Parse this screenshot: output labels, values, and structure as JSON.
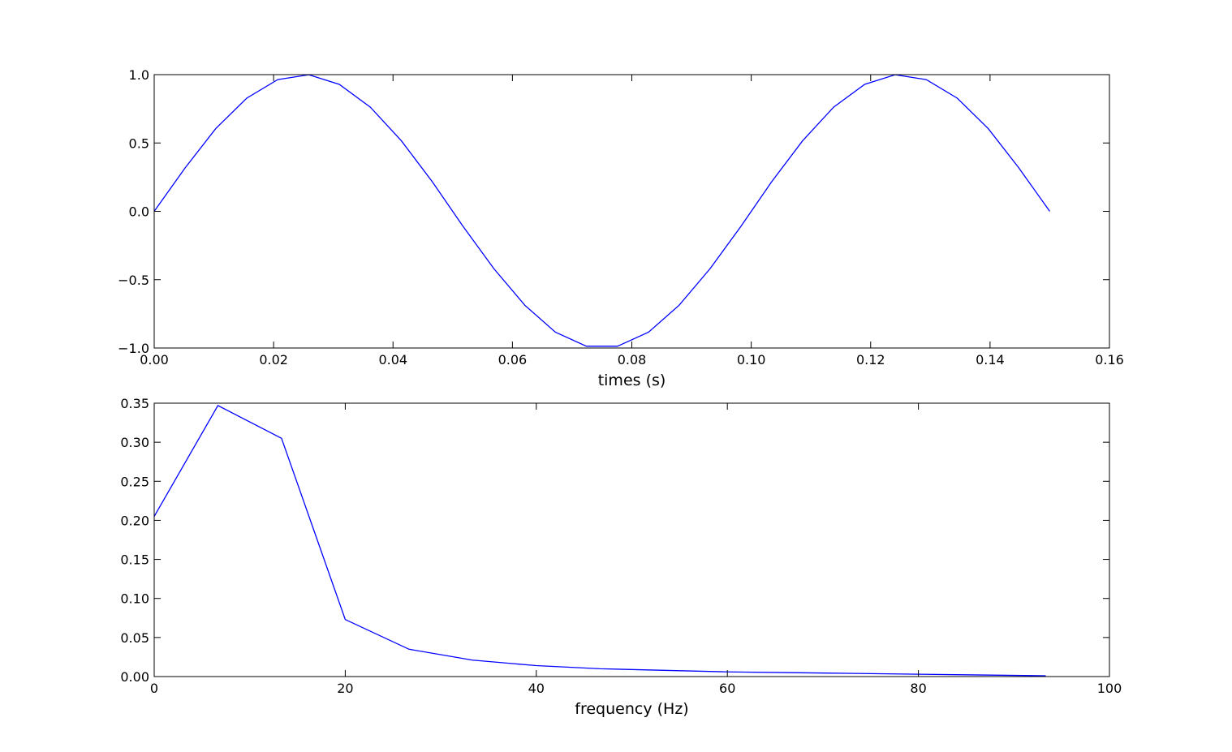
{
  "chart_data": [
    {
      "type": "line",
      "x_label": "times (s)",
      "x": [
        0,
        0.0052,
        0.0103,
        0.0155,
        0.0207,
        0.0259,
        0.031,
        0.0362,
        0.0414,
        0.0466,
        0.0517,
        0.0569,
        0.0621,
        0.0672,
        0.0724,
        0.0776,
        0.0828,
        0.0879,
        0.0931,
        0.0983,
        0.1034,
        0.1086,
        0.1138,
        0.119,
        0.1241,
        0.1293,
        0.1345,
        0.1397,
        0.1448,
        0.15
      ],
      "series": [
        {
          "color": "#0000ff",
          "values": [
            0,
            0.319,
            0.605,
            0.828,
            0.964,
            0.999,
            0.929,
            0.762,
            0.516,
            0.215,
            -0.108,
            -0.42,
            -0.688,
            -0.884,
            -0.987,
            -0.987,
            -0.884,
            -0.688,
            -0.42,
            -0.108,
            0.215,
            0.516,
            0.762,
            0.929,
            0.999,
            0.964,
            0.828,
            0.605,
            0.319,
            0
          ]
        }
      ],
      "xlim": [
        0,
        0.16
      ],
      "xticks": [
        {
          "value": 0,
          "label": "0.00"
        },
        {
          "value": 0.02,
          "label": "0.02"
        },
        {
          "value": 0.04,
          "label": "0.04"
        },
        {
          "value": 0.06,
          "label": "0.06"
        },
        {
          "value": 0.08,
          "label": "0.08"
        },
        {
          "value": 0.1,
          "label": "0.10"
        },
        {
          "value": 0.12,
          "label": "0.12"
        },
        {
          "value": 0.14,
          "label": "0.14"
        },
        {
          "value": 0.16,
          "label": "0.16"
        }
      ],
      "ylim": [
        -1,
        1
      ],
      "yticks": [
        {
          "value": -1,
          "label": "−1.0"
        },
        {
          "value": -0.5,
          "label": "−0.5"
        },
        {
          "value": 0,
          "label": "0.0"
        },
        {
          "value": 0.5,
          "label": "0.5"
        },
        {
          "value": 1,
          "label": "1.0"
        }
      ],
      "grid": false
    },
    {
      "type": "line",
      "x_label": "frequency (Hz)",
      "x": [
        0,
        6.67,
        13.33,
        20,
        26.67,
        33.33,
        40,
        46.67,
        53.33,
        60,
        66.67,
        73.33,
        80,
        86.67,
        93.33
      ],
      "series": [
        {
          "color": "#0000ff",
          "values": [
            0.205,
            0.347,
            0.305,
            0.073,
            0.035,
            0.021,
            0.014,
            0.01,
            0.008,
            0.006,
            0.005,
            0.004,
            0.003,
            0.002,
            0.001
          ]
        }
      ],
      "xlim": [
        0,
        100
      ],
      "xticks": [
        0,
        20,
        40,
        60,
        80,
        100
      ],
      "ylim": [
        0,
        0.35
      ],
      "yticks": [
        {
          "value": 0,
          "label": "0.00"
        },
        {
          "value": 0.05,
          "label": "0.05"
        },
        {
          "value": 0.1,
          "label": "0.10"
        },
        {
          "value": 0.15,
          "label": "0.15"
        },
        {
          "value": 0.2,
          "label": "0.20"
        },
        {
          "value": 0.25,
          "label": "0.25"
        },
        {
          "value": 0.3,
          "label": "0.30"
        },
        {
          "value": 0.35,
          "label": "0.35"
        }
      ],
      "grid": false
    }
  ]
}
